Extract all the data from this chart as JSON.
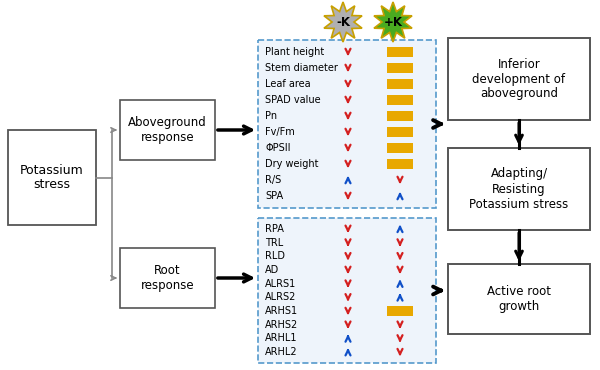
{
  "bg_color": "#ffffff",
  "above_items": [
    "Plant height",
    "Stem diameter",
    "Leaf area",
    "SPAD value",
    "Pn",
    "Fv/Fm",
    "ΦPSII",
    "Dry weight",
    "R/S",
    "SPA"
  ],
  "above_minus_k": [
    "down_red",
    "down_red",
    "down_red",
    "down_red",
    "down_red",
    "down_red",
    "down_red",
    "down_red",
    "up_blue",
    "down_red"
  ],
  "above_plus_k": [
    "yellow_bar",
    "yellow_bar",
    "yellow_bar",
    "yellow_bar",
    "yellow_bar",
    "yellow_bar",
    "yellow_bar",
    "yellow_bar",
    "down_red",
    "up_blue"
  ],
  "root_items": [
    "RPA",
    "TRL",
    "RLD",
    "AD",
    "ALRS1",
    "ALRS2",
    "ARHS1",
    "ARHS2",
    "ARHL1",
    "ARHL2"
  ],
  "root_minus_k": [
    "down_red",
    "down_red",
    "down_red",
    "down_red",
    "down_red",
    "down_red",
    "down_red",
    "down_red",
    "up_blue",
    "up_blue"
  ],
  "root_plus_k": [
    "up_blue",
    "down_red",
    "down_red",
    "down_red",
    "up_blue",
    "up_blue",
    "yellow_bar",
    "down_red",
    "down_red",
    "down_red"
  ],
  "minus_k_label": "-K",
  "plus_k_label": "+K",
  "red": "#d42020",
  "blue": "#1050c8",
  "yellow": "#e8a800",
  "gray_starburst_face": "#b0b0b0",
  "gray_starburst_edge": "#c8a000",
  "green_starburst_face": "#4aaa20",
  "green_starburst_edge": "#c8a000",
  "dash_color": "#5599cc",
  "box_edge": "#555555",
  "right_box_edge": "#555555"
}
